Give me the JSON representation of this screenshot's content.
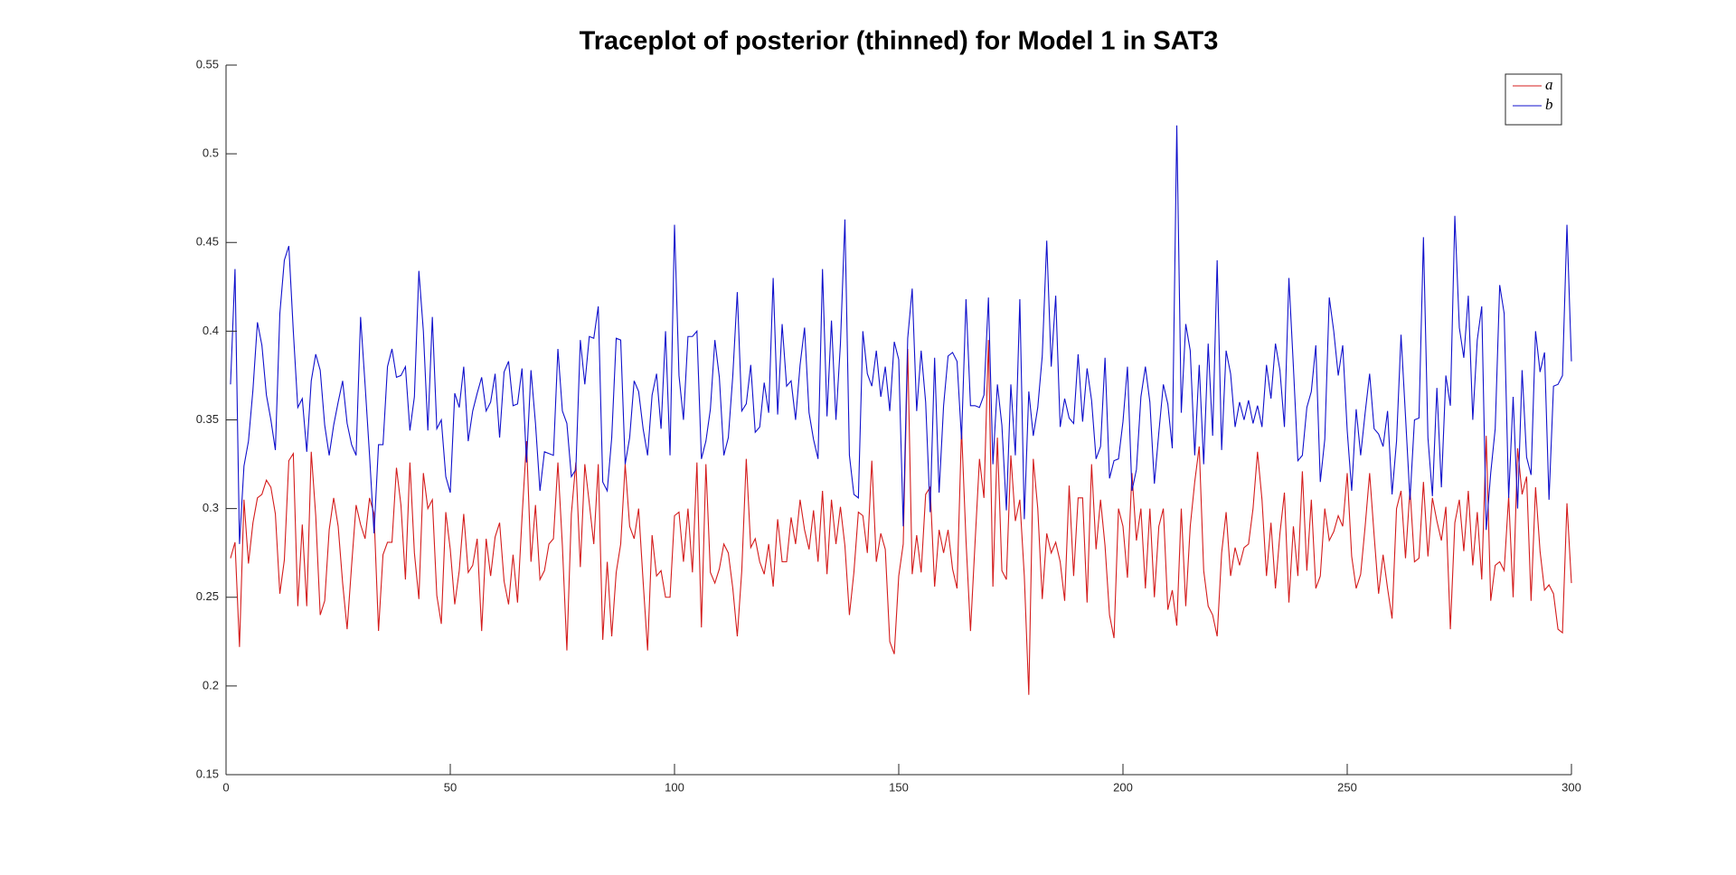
{
  "chart_data": {
    "type": "line",
    "title": "Traceplot of posterior (thinned) for Model 1 in SAT3",
    "x": [
      1,
      2,
      3,
      4,
      5,
      6,
      7,
      8,
      9,
      10,
      11,
      12,
      13,
      14,
      15,
      16,
      17,
      18,
      19,
      20,
      21,
      22,
      23,
      24,
      25,
      26,
      27,
      28,
      29,
      30,
      31,
      32,
      33,
      34,
      35,
      36,
      37,
      38,
      39,
      40,
      41,
      42,
      43,
      44,
      45,
      46,
      47,
      48,
      49,
      50,
      51,
      52,
      53,
      54,
      55,
      56,
      57,
      58,
      59,
      60,
      61,
      62,
      63,
      64,
      65,
      66,
      67,
      68,
      69,
      70,
      71,
      72,
      73,
      74,
      75,
      76,
      77,
      78,
      79,
      80,
      81,
      82,
      83,
      84,
      85,
      86,
      87,
      88,
      89,
      90,
      91,
      92,
      93,
      94,
      95,
      96,
      97,
      98,
      99,
      100,
      101,
      102,
      103,
      104,
      105,
      106,
      107,
      108,
      109,
      110,
      111,
      112,
      113,
      114,
      115,
      116,
      117,
      118,
      119,
      120,
      121,
      122,
      123,
      124,
      125,
      126,
      127,
      128,
      129,
      130,
      131,
      132,
      133,
      134,
      135,
      136,
      137,
      138,
      139,
      140,
      141,
      142,
      143,
      144,
      145,
      146,
      147,
      148,
      149,
      150,
      151,
      152,
      153,
      154,
      155,
      156,
      157,
      158,
      159,
      160,
      161,
      162,
      163,
      164,
      165,
      166,
      167,
      168,
      169,
      170,
      171,
      172,
      173,
      174,
      175,
      176,
      177,
      178,
      179,
      180,
      181,
      182,
      183,
      184,
      185,
      186,
      187,
      188,
      189,
      190,
      191,
      192,
      193,
      194,
      195,
      196,
      197,
      198,
      199,
      200,
      201,
      202,
      203,
      204,
      205,
      206,
      207,
      208,
      209,
      210,
      211,
      212,
      213,
      214,
      215,
      216,
      217,
      218,
      219,
      220,
      221,
      222,
      223,
      224,
      225,
      226,
      227,
      228,
      229,
      230,
      231,
      232,
      233,
      234,
      235,
      236,
      237,
      238,
      239,
      240,
      241,
      242,
      243,
      244,
      245,
      246,
      247,
      248,
      249,
      250,
      251,
      252,
      253,
      254,
      255,
      256,
      257,
      258,
      259,
      260,
      261,
      262,
      263,
      264,
      265,
      266,
      267,
      268,
      269,
      270,
      271,
      272,
      273,
      274,
      275,
      276,
      277,
      278,
      279,
      280,
      281,
      282,
      283,
      284,
      285,
      286,
      287,
      288,
      289,
      290,
      291,
      292,
      293,
      294,
      295,
      296,
      297,
      298,
      299,
      300
    ],
    "series": [
      {
        "name": "a",
        "color": "#d41c1c",
        "values": [
          0.272,
          0.281,
          0.222,
          0.305,
          0.269,
          0.292,
          0.306,
          0.308,
          0.316,
          0.312,
          0.297,
          0.252,
          0.271,
          0.327,
          0.331,
          0.245,
          0.291,
          0.245,
          0.332,
          0.296,
          0.24,
          0.248,
          0.288,
          0.306,
          0.29,
          0.258,
          0.232,
          0.268,
          0.302,
          0.291,
          0.283,
          0.306,
          0.297,
          0.231,
          0.274,
          0.281,
          0.281,
          0.323,
          0.302,
          0.26,
          0.326,
          0.275,
          0.249,
          0.32,
          0.3,
          0.305,
          0.251,
          0.235,
          0.298,
          0.277,
          0.246,
          0.265,
          0.297,
          0.264,
          0.268,
          0.283,
          0.231,
          0.283,
          0.262,
          0.284,
          0.292,
          0.259,
          0.246,
          0.274,
          0.247,
          0.295,
          0.338,
          0.27,
          0.302,
          0.26,
          0.265,
          0.28,
          0.283,
          0.326,
          0.279,
          0.22,
          0.297,
          0.326,
          0.267,
          0.325,
          0.303,
          0.28,
          0.325,
          0.226,
          0.27,
          0.228,
          0.264,
          0.28,
          0.325,
          0.29,
          0.283,
          0.3,
          0.259,
          0.22,
          0.285,
          0.262,
          0.265,
          0.25,
          0.25,
          0.296,
          0.298,
          0.27,
          0.3,
          0.264,
          0.326,
          0.233,
          0.325,
          0.264,
          0.258,
          0.266,
          0.28,
          0.275,
          0.255,
          0.228,
          0.265,
          0.328,
          0.278,
          0.283,
          0.27,
          0.263,
          0.28,
          0.256,
          0.294,
          0.27,
          0.27,
          0.295,
          0.28,
          0.305,
          0.288,
          0.277,
          0.299,
          0.27,
          0.31,
          0.263,
          0.305,
          0.28,
          0.301,
          0.279,
          0.24,
          0.264,
          0.298,
          0.296,
          0.275,
          0.327,
          0.27,
          0.286,
          0.277,
          0.225,
          0.218,
          0.262,
          0.28,
          0.39,
          0.263,
          0.285,
          0.264,
          0.308,
          0.312,
          0.256,
          0.288,
          0.275,
          0.288,
          0.266,
          0.255,
          0.345,
          0.282,
          0.231,
          0.28,
          0.328,
          0.306,
          0.395,
          0.256,
          0.34,
          0.265,
          0.26,
          0.33,
          0.293,
          0.305,
          0.262,
          0.195,
          0.328,
          0.3,
          0.249,
          0.286,
          0.275,
          0.281,
          0.27,
          0.248,
          0.313,
          0.262,
          0.306,
          0.306,
          0.247,
          0.325,
          0.277,
          0.305,
          0.279,
          0.24,
          0.227,
          0.3,
          0.29,
          0.261,
          0.32,
          0.282,
          0.3,
          0.255,
          0.3,
          0.25,
          0.29,
          0.3,
          0.243,
          0.254,
          0.234,
          0.3,
          0.245,
          0.29,
          0.315,
          0.335,
          0.265,
          0.245,
          0.24,
          0.228,
          0.275,
          0.298,
          0.262,
          0.278,
          0.268,
          0.278,
          0.28,
          0.3,
          0.332,
          0.305,
          0.262,
          0.292,
          0.255,
          0.286,
          0.309,
          0.247,
          0.29,
          0.262,
          0.321,
          0.265,
          0.305,
          0.255,
          0.262,
          0.3,
          0.282,
          0.287,
          0.296,
          0.29,
          0.32,
          0.273,
          0.255,
          0.263,
          0.29,
          0.32,
          0.285,
          0.252,
          0.274,
          0.255,
          0.238,
          0.3,
          0.31,
          0.272,
          0.311,
          0.27,
          0.272,
          0.315,
          0.273,
          0.306,
          0.293,
          0.282,
          0.301,
          0.232,
          0.292,
          0.305,
          0.276,
          0.31,
          0.268,
          0.298,
          0.26,
          0.341,
          0.248,
          0.268,
          0.27,
          0.265,
          0.307,
          0.25,
          0.334,
          0.308,
          0.318,
          0.248,
          0.312,
          0.276,
          0.254,
          0.257,
          0.252,
          0.232,
          0.23,
          0.303,
          0.258
        ]
      },
      {
        "name": "b",
        "color": "#1010cc",
        "values": [
          0.37,
          0.435,
          0.28,
          0.324,
          0.338,
          0.367,
          0.405,
          0.392,
          0.364,
          0.35,
          0.333,
          0.41,
          0.44,
          0.448,
          0.4,
          0.357,
          0.362,
          0.332,
          0.372,
          0.387,
          0.378,
          0.347,
          0.33,
          0.347,
          0.36,
          0.372,
          0.348,
          0.336,
          0.33,
          0.408,
          0.37,
          0.33,
          0.286,
          0.336,
          0.336,
          0.38,
          0.39,
          0.374,
          0.375,
          0.38,
          0.344,
          0.363,
          0.434,
          0.4,
          0.344,
          0.408,
          0.345,
          0.35,
          0.318,
          0.309,
          0.365,
          0.357,
          0.38,
          0.338,
          0.355,
          0.365,
          0.374,
          0.355,
          0.36,
          0.376,
          0.34,
          0.377,
          0.383,
          0.358,
          0.359,
          0.379,
          0.326,
          0.378,
          0.348,
          0.31,
          0.332,
          0.331,
          0.33,
          0.39,
          0.355,
          0.348,
          0.318,
          0.322,
          0.395,
          0.37,
          0.397,
          0.396,
          0.414,
          0.315,
          0.31,
          0.34,
          0.396,
          0.395,
          0.325,
          0.34,
          0.372,
          0.366,
          0.345,
          0.33,
          0.364,
          0.376,
          0.345,
          0.4,
          0.33,
          0.46,
          0.375,
          0.35,
          0.397,
          0.397,
          0.4,
          0.328,
          0.338,
          0.356,
          0.395,
          0.374,
          0.33,
          0.34,
          0.375,
          0.422,
          0.355,
          0.359,
          0.381,
          0.343,
          0.346,
          0.371,
          0.354,
          0.43,
          0.353,
          0.404,
          0.369,
          0.372,
          0.35,
          0.381,
          0.402,
          0.354,
          0.339,
          0.328,
          0.435,
          0.352,
          0.406,
          0.35,
          0.393,
          0.463,
          0.33,
          0.308,
          0.306,
          0.4,
          0.376,
          0.369,
          0.389,
          0.363,
          0.38,
          0.355,
          0.394,
          0.384,
          0.29,
          0.396,
          0.424,
          0.355,
          0.389,
          0.36,
          0.298,
          0.385,
          0.309,
          0.358,
          0.386,
          0.388,
          0.383,
          0.339,
          0.418,
          0.358,
          0.358,
          0.357,
          0.364,
          0.419,
          0.325,
          0.37,
          0.347,
          0.299,
          0.37,
          0.33,
          0.418,
          0.294,
          0.366,
          0.341,
          0.357,
          0.386,
          0.451,
          0.38,
          0.42,
          0.346,
          0.362,
          0.351,
          0.348,
          0.387,
          0.349,
          0.379,
          0.361,
          0.328,
          0.335,
          0.385,
          0.317,
          0.327,
          0.328,
          0.349,
          0.38,
          0.31,
          0.322,
          0.363,
          0.38,
          0.36,
          0.314,
          0.343,
          0.37,
          0.359,
          0.334,
          0.516,
          0.354,
          0.404,
          0.389,
          0.33,
          0.381,
          0.325,
          0.393,
          0.341,
          0.44,
          0.333,
          0.389,
          0.376,
          0.346,
          0.36,
          0.35,
          0.361,
          0.348,
          0.358,
          0.346,
          0.381,
          0.362,
          0.393,
          0.378,
          0.346,
          0.43,
          0.38,
          0.327,
          0.33,
          0.357,
          0.366,
          0.392,
          0.315,
          0.339,
          0.419,
          0.4,
          0.375,
          0.392,
          0.344,
          0.31,
          0.356,
          0.33,
          0.354,
          0.376,
          0.345,
          0.342,
          0.335,
          0.355,
          0.308,
          0.338,
          0.398,
          0.352,
          0.305,
          0.35,
          0.351,
          0.453,
          0.34,
          0.307,
          0.368,
          0.312,
          0.375,
          0.358,
          0.465,
          0.402,
          0.385,
          0.42,
          0.35,
          0.395,
          0.414,
          0.288,
          0.32,
          0.345,
          0.426,
          0.41,
          0.306,
          0.363,
          0.3,
          0.378,
          0.329,
          0.319,
          0.4,
          0.377,
          0.388,
          0.305,
          0.369,
          0.37,
          0.375,
          0.46,
          0.383
        ]
      }
    ],
    "xlim": [
      0,
      300
    ],
    "xticks": [
      0,
      50,
      100,
      150,
      200,
      250,
      300
    ],
    "ylim": [
      0.15,
      0.55
    ],
    "yticks": [
      0.15,
      0.2,
      0.25,
      0.3,
      0.35,
      0.4,
      0.45,
      0.5,
      0.55
    ],
    "grid": false,
    "legend": "top-right"
  }
}
